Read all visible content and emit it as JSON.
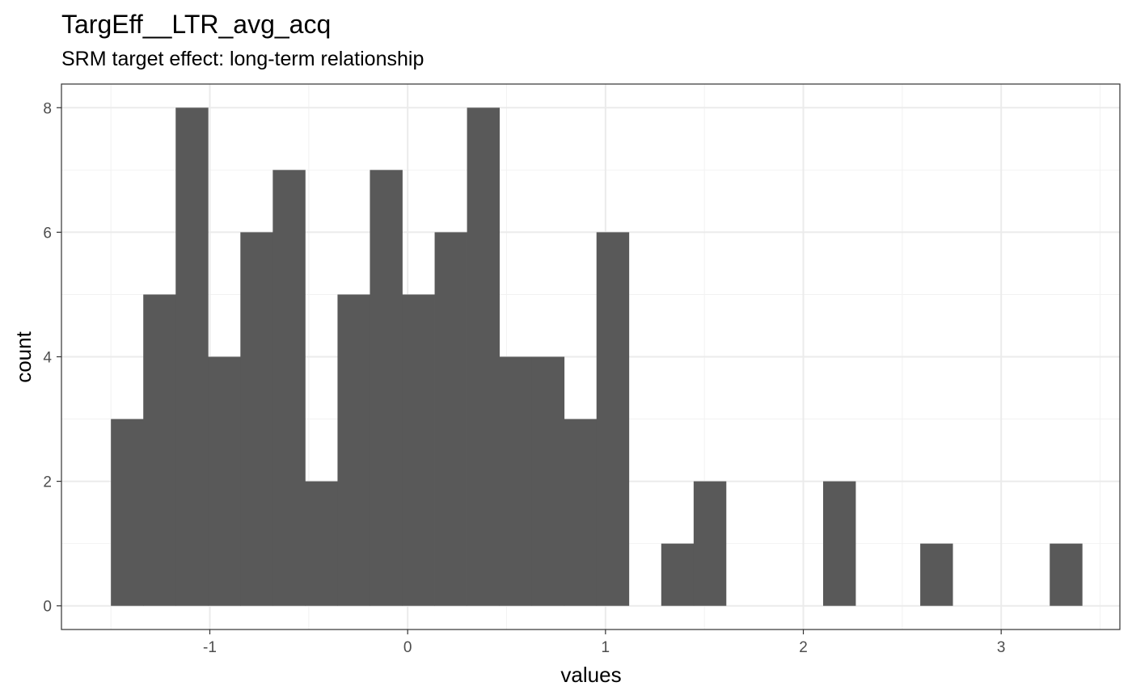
{
  "chart_data": {
    "type": "bar",
    "subtype": "histogram",
    "title": "TargEff__LTR_avg_acq",
    "subtitle": "SRM target effect: long-term relationship",
    "xlabel": "values",
    "ylabel": "count",
    "bin_width": 0.1636,
    "bins": [
      {
        "x0": -1.5,
        "count": 3
      },
      {
        "x0": -1.3364,
        "count": 5
      },
      {
        "x0": -1.1727,
        "count": 8
      },
      {
        "x0": -1.0091,
        "count": 4
      },
      {
        "x0": -0.8455,
        "count": 6
      },
      {
        "x0": -0.6818,
        "count": 7
      },
      {
        "x0": -0.5182,
        "count": 2
      },
      {
        "x0": -0.3545,
        "count": 5
      },
      {
        "x0": -0.1909,
        "count": 7
      },
      {
        "x0": -0.0273,
        "count": 5
      },
      {
        "x0": 0.1364,
        "count": 6
      },
      {
        "x0": 0.3,
        "count": 8
      },
      {
        "x0": 0.4636,
        "count": 4
      },
      {
        "x0": 0.6273,
        "count": 4
      },
      {
        "x0": 0.7909,
        "count": 3
      },
      {
        "x0": 0.9545,
        "count": 6
      },
      {
        "x0": 1.1182,
        "count": 0
      },
      {
        "x0": 1.2818,
        "count": 1
      },
      {
        "x0": 1.4455,
        "count": 2
      },
      {
        "x0": 1.6091,
        "count": 0
      },
      {
        "x0": 1.7727,
        "count": 0
      },
      {
        "x0": 1.9364,
        "count": 0
      },
      {
        "x0": 2.1,
        "count": 2
      },
      {
        "x0": 2.2636,
        "count": 0
      },
      {
        "x0": 2.4273,
        "count": 0
      },
      {
        "x0": 2.5909,
        "count": 1
      },
      {
        "x0": 2.7545,
        "count": 0
      },
      {
        "x0": 2.9182,
        "count": 0
      },
      {
        "x0": 3.0818,
        "count": 0
      },
      {
        "x0": 3.2455,
        "count": 1
      }
    ],
    "xlim": [
      -1.75,
      3.6
    ],
    "ylim": [
      -0.38,
      8.38
    ],
    "x_ticks": [
      -1,
      0,
      1,
      2,
      3
    ],
    "x_tick_labels": [
      "-1",
      "0",
      "1",
      "2",
      "3"
    ],
    "y_ticks": [
      0,
      2,
      4,
      6,
      8
    ],
    "y_tick_labels": [
      "0",
      "2",
      "4",
      "6",
      "8"
    ],
    "grid": true,
    "legend": "none",
    "colors": {
      "bar_fill": "#595959",
      "panel_border": "#333333",
      "grid_major": "#ebebeb",
      "grid_minor": "#f2f2f2",
      "tick_label": "#4d4d4d"
    }
  }
}
